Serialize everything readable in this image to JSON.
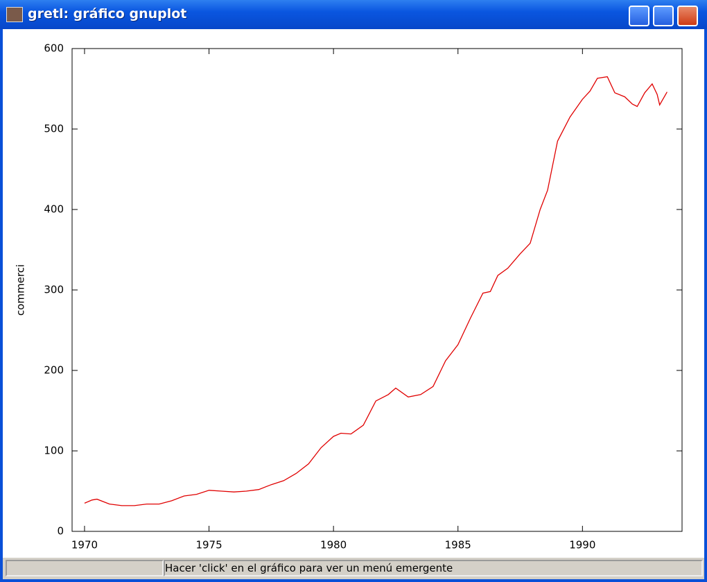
{
  "window": {
    "title": "gretl: gráfico gnuplot"
  },
  "status_bar": {
    "text": "Hacer 'click' en el gráfico para ver un menú emergente"
  },
  "chart_data": {
    "type": "line",
    "ylabel": "commerci",
    "color": "#e00000",
    "x": [
      1970.0,
      1970.3,
      1970.5,
      1971.0,
      1971.5,
      1972.0,
      1972.5,
      1973.0,
      1973.5,
      1974.0,
      1974.5,
      1975.0,
      1975.5,
      1976.0,
      1976.5,
      1977.0,
      1977.5,
      1978.0,
      1978.5,
      1979.0,
      1979.5,
      1980.0,
      1980.3,
      1980.7,
      1981.2,
      1981.7,
      1982.2,
      1982.5,
      1983.0,
      1983.5,
      1984.0,
      1984.5,
      1985.0,
      1985.5,
      1986.0,
      1986.3,
      1986.6,
      1987.0,
      1987.5,
      1987.9,
      1988.3,
      1988.6,
      1989.0,
      1989.5,
      1990.0,
      1990.3,
      1990.6,
      1991.0,
      1991.3,
      1991.7,
      1992.0,
      1992.2,
      1992.5,
      1992.8,
      1993.0,
      1993.1,
      1993.4
    ],
    "values": [
      35,
      39,
      40,
      34,
      32,
      32,
      34,
      34,
      38,
      44,
      46,
      51,
      50,
      49,
      50,
      52,
      58,
      63,
      72,
      84,
      104,
      118,
      122,
      121,
      132,
      162,
      170,
      178,
      167,
      170,
      180,
      212,
      232,
      265,
      296,
      298,
      318,
      327,
      345,
      358,
      400,
      424,
      485,
      515,
      537,
      547,
      563,
      565,
      545,
      540,
      531,
      528,
      545,
      556,
      543,
      530,
      546
    ],
    "xlim": [
      1969.5,
      1994
    ],
    "ylim": [
      0,
      600
    ],
    "xticks": [
      1970,
      1975,
      1980,
      1985,
      1990
    ],
    "yticks": [
      0,
      100,
      200,
      300,
      400,
      500,
      600
    ]
  }
}
